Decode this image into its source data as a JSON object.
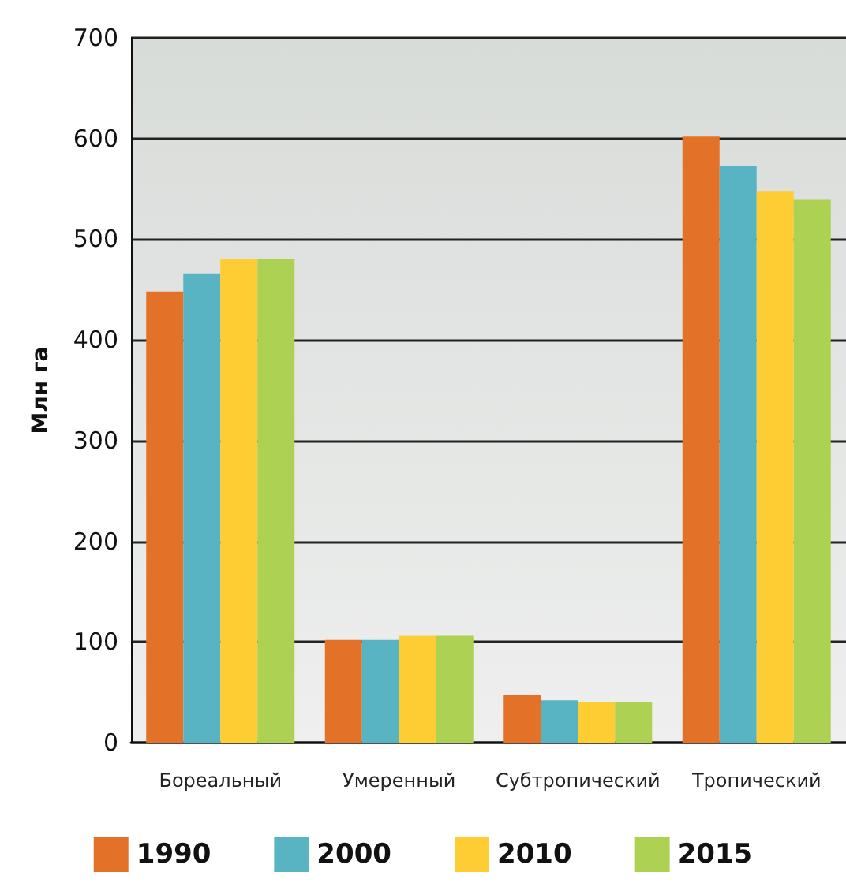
{
  "chart_data": {
    "type": "bar",
    "ylabel": "Млн га",
    "categories": [
      "Бореальный",
      "Умеренный",
      "Субтропический",
      "Тропический"
    ],
    "series": [
      {
        "name": "1990",
        "color": "#e37228",
        "values": [
          448,
          102,
          47,
          602
        ]
      },
      {
        "name": "2000",
        "color": "#58b4c3",
        "values": [
          466,
          102,
          42,
          573
        ]
      },
      {
        "name": "2010",
        "color": "#fecd33",
        "values": [
          480,
          106,
          40,
          548
        ]
      },
      {
        "name": "2015",
        "color": "#add153",
        "values": [
          480,
          106,
          40,
          539
        ]
      }
    ],
    "ylim": [
      0,
      700
    ],
    "yticks": [
      0,
      100,
      200,
      300,
      400,
      500,
      600,
      700
    ],
    "grid": "y",
    "legend": "bottom"
  }
}
